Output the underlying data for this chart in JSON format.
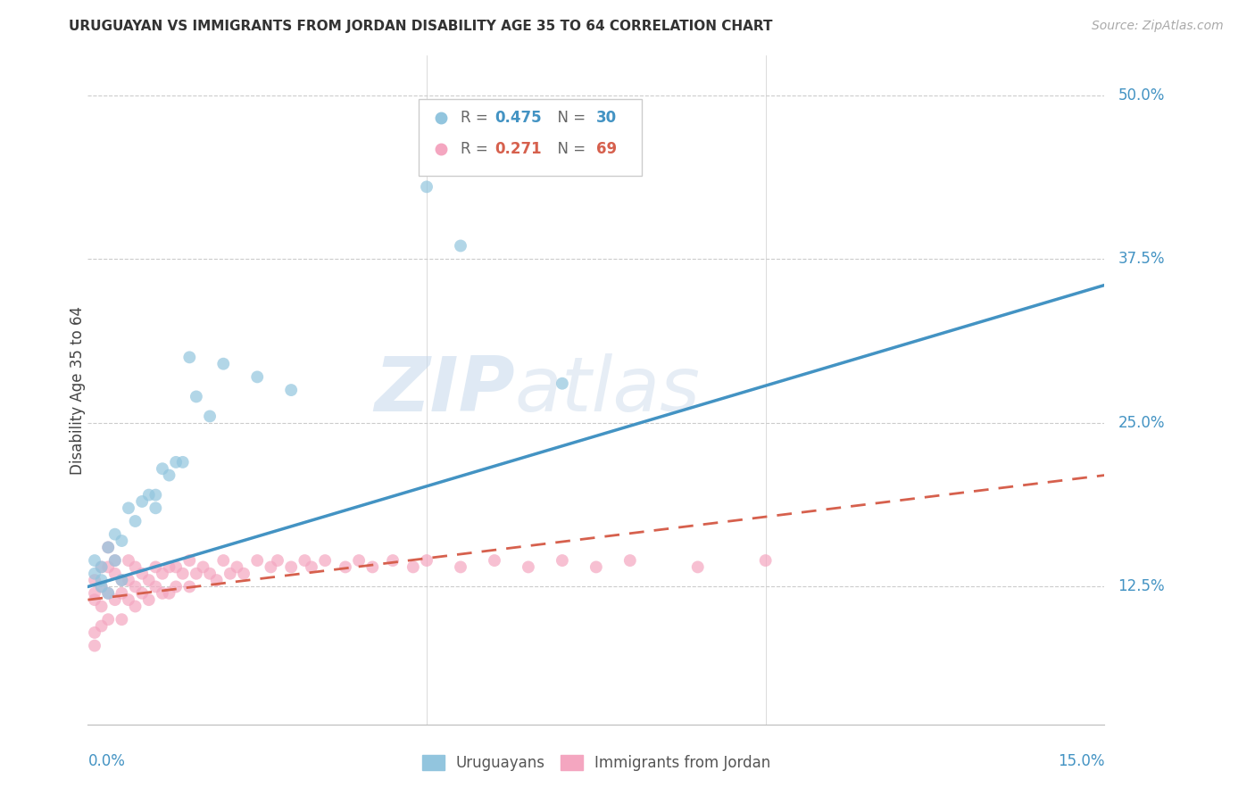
{
  "title": "URUGUAYAN VS IMMIGRANTS FROM JORDAN DISABILITY AGE 35 TO 64 CORRELATION CHART",
  "source": "Source: ZipAtlas.com",
  "ylabel": "Disability Age 35 to 64",
  "ytick_vals": [
    0.125,
    0.25,
    0.375,
    0.5
  ],
  "ytick_labels": [
    "12.5%",
    "25.0%",
    "37.5%",
    "50.0%"
  ],
  "xlim": [
    0.0,
    0.15
  ],
  "ylim": [
    0.02,
    0.53
  ],
  "blue_color": "#92c5de",
  "pink_color": "#f4a6c0",
  "line_blue": "#4393c3",
  "line_pink": "#d6604d",
  "watermark_zip": "ZIP",
  "watermark_atlas": "atlas",
  "uruguayan_x": [
    0.001,
    0.001,
    0.002,
    0.002,
    0.002,
    0.003,
    0.003,
    0.004,
    0.004,
    0.005,
    0.005,
    0.006,
    0.007,
    0.008,
    0.009,
    0.01,
    0.01,
    0.011,
    0.012,
    0.013,
    0.014,
    0.015,
    0.016,
    0.018,
    0.02,
    0.025,
    0.03,
    0.05,
    0.055,
    0.07
  ],
  "uruguayan_y": [
    0.135,
    0.145,
    0.125,
    0.13,
    0.14,
    0.12,
    0.155,
    0.145,
    0.165,
    0.13,
    0.16,
    0.185,
    0.175,
    0.19,
    0.195,
    0.185,
    0.195,
    0.215,
    0.21,
    0.22,
    0.22,
    0.3,
    0.27,
    0.255,
    0.295,
    0.285,
    0.275,
    0.43,
    0.385,
    0.28
  ],
  "jordan_x": [
    0.001,
    0.001,
    0.001,
    0.001,
    0.001,
    0.002,
    0.002,
    0.002,
    0.002,
    0.003,
    0.003,
    0.003,
    0.003,
    0.004,
    0.004,
    0.004,
    0.005,
    0.005,
    0.005,
    0.006,
    0.006,
    0.006,
    0.007,
    0.007,
    0.007,
    0.008,
    0.008,
    0.009,
    0.009,
    0.01,
    0.01,
    0.011,
    0.011,
    0.012,
    0.012,
    0.013,
    0.013,
    0.014,
    0.015,
    0.015,
    0.016,
    0.017,
    0.018,
    0.019,
    0.02,
    0.021,
    0.022,
    0.023,
    0.025,
    0.027,
    0.028,
    0.03,
    0.032,
    0.033,
    0.035,
    0.038,
    0.04,
    0.042,
    0.045,
    0.048,
    0.05,
    0.055,
    0.06,
    0.065,
    0.07,
    0.075,
    0.08,
    0.09,
    0.1
  ],
  "jordan_y": [
    0.12,
    0.13,
    0.115,
    0.09,
    0.08,
    0.14,
    0.125,
    0.11,
    0.095,
    0.155,
    0.14,
    0.12,
    0.1,
    0.145,
    0.135,
    0.115,
    0.13,
    0.12,
    0.1,
    0.145,
    0.13,
    0.115,
    0.14,
    0.125,
    0.11,
    0.135,
    0.12,
    0.13,
    0.115,
    0.14,
    0.125,
    0.135,
    0.12,
    0.14,
    0.12,
    0.14,
    0.125,
    0.135,
    0.145,
    0.125,
    0.135,
    0.14,
    0.135,
    0.13,
    0.145,
    0.135,
    0.14,
    0.135,
    0.145,
    0.14,
    0.145,
    0.14,
    0.145,
    0.14,
    0.145,
    0.14,
    0.145,
    0.14,
    0.145,
    0.14,
    0.145,
    0.14,
    0.145,
    0.14,
    0.145,
    0.14,
    0.145,
    0.14,
    0.145
  ]
}
